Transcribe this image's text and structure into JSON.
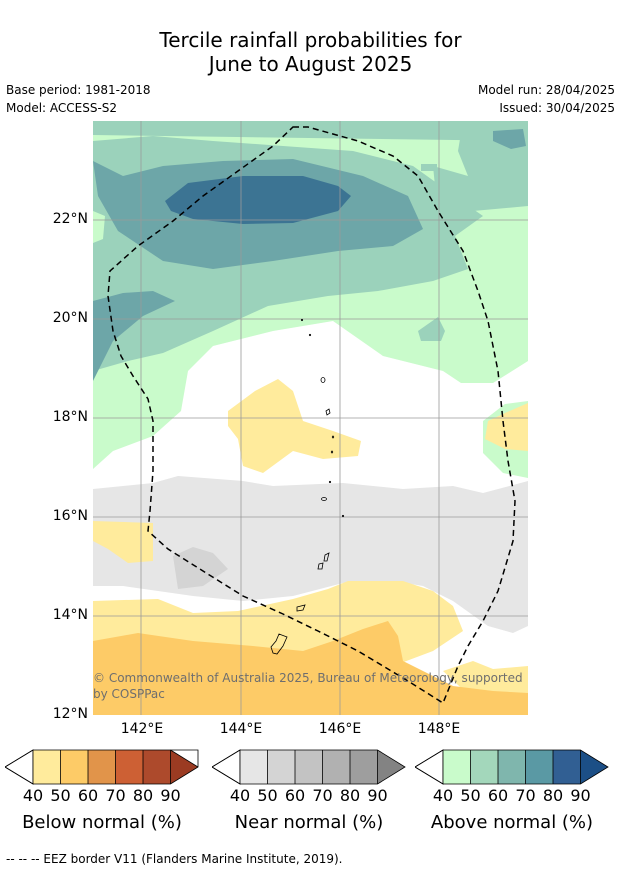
{
  "title_line1": "Tercile rainfall probabilities for",
  "title_line2": "June to August 2025",
  "meta": {
    "base_period": "Base period: 1981-2018",
    "model": "Model: ACCESS-S2",
    "model_run": "Model run: 28/04/2025",
    "issued": "Issued: 30/04/2025"
  },
  "axes": {
    "lat_labels": [
      "22°N",
      "20°N",
      "18°N",
      "16°N",
      "14°N",
      "12°N"
    ],
    "lon_labels": [
      "142°E",
      "144°E",
      "146°E",
      "148°E"
    ]
  },
  "copyright": "© Commonwealth of Australia 2025, Bureau of Meteorology, supported by COSPPac",
  "legends": [
    {
      "title": "Below normal (%)",
      "ticks": [
        "40",
        "50",
        "60",
        "70",
        "80",
        "90"
      ],
      "colors": [
        "#ffeb9c",
        "#fdcb67",
        "#e1944a",
        "#cd6034",
        "#ad4a2c",
        "#9b3b22"
      ]
    },
    {
      "title": "Near normal (%)",
      "ticks": [
        "40",
        "50",
        "60",
        "70",
        "80",
        "90"
      ],
      "colors": [
        "#e6e6e6",
        "#d4d4d4",
        "#c3c3c3",
        "#b1b1b1",
        "#9e9e9e",
        "#838383"
      ]
    },
    {
      "title": "Above normal (%)",
      "ticks": [
        "40",
        "50",
        "60",
        "70",
        "80",
        "90"
      ],
      "colors": [
        "#c9fbcb",
        "#a3d7bb",
        "#7fb6ad",
        "#5a99a4",
        "#315f93",
        "#1c4f86"
      ]
    }
  ],
  "map_colors": {
    "above_40": "#c9fbcb",
    "above_50": "#9bd2bb",
    "above_60": "#6da6a8",
    "above_70": "#3c7493",
    "near_40": "#e6e6e6",
    "near_50": "#d4d4d4",
    "below_40": "#ffeb9c",
    "below_50": "#fdcb67"
  },
  "footnote": "--  --  -- EEZ border V11 (Flanders Marine Institute, 2019)."
}
